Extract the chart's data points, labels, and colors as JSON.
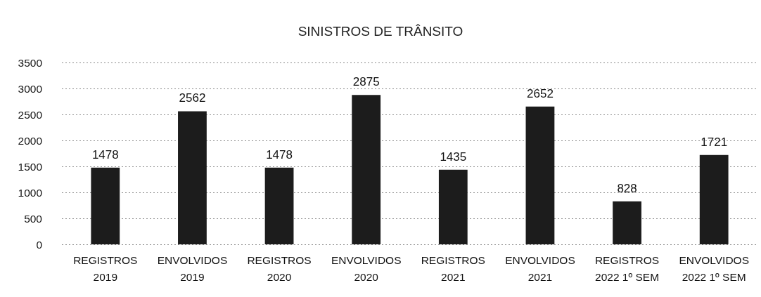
{
  "chart_data": {
    "type": "bar",
    "title": "SINISTROS DE TRÂNSITO",
    "categories": [
      "REGISTROS\n2019",
      "ENVOLVIDOS\n2019",
      "REGISTROS\n2020",
      "ENVOLVIDOS\n2020",
      "REGISTROS\n2021",
      "ENVOLVIDOS\n2021",
      "REGISTROS\n2022 1º SEM",
      "ENVOLVIDOS\n2022 1º SEM"
    ],
    "values": [
      1478,
      2562,
      1478,
      2875,
      1435,
      2652,
      828,
      1721
    ],
    "color": "#1c1c1c",
    "ylim": [
      0,
      3500
    ],
    "yticks": [
      0,
      500,
      1000,
      1500,
      2000,
      2500,
      3000,
      3500
    ],
    "grid": "y",
    "data_labels": true
  }
}
